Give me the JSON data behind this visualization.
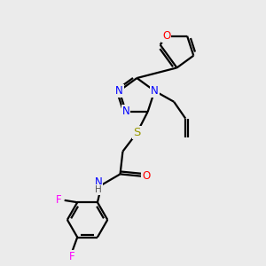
{
  "bg_color": "#ebebeb",
  "bond_color": "#000000",
  "bond_width": 1.6,
  "atom_colors": {
    "N": "#0000ff",
    "O": "#ff0000",
    "S": "#999900",
    "F": "#ff00ff",
    "C": "#000000",
    "H": "#555555"
  },
  "font_size": 8.5,
  "fig_size": [
    3.0,
    3.0
  ],
  "dpi": 100
}
